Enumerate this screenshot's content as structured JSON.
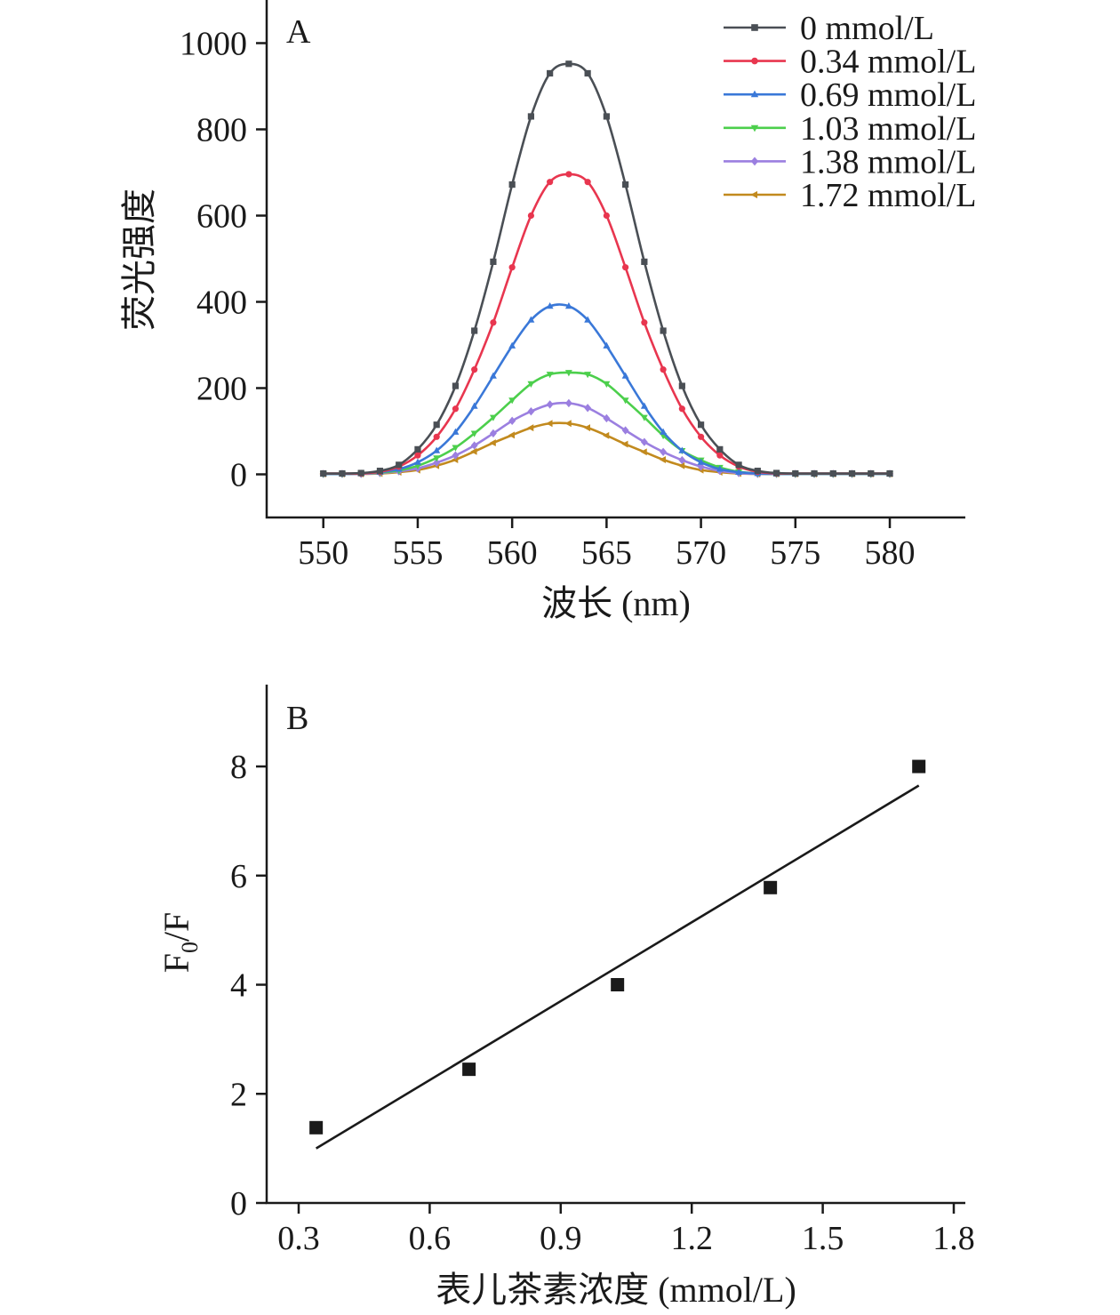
{
  "chart_data": [
    {
      "type": "line",
      "panel_label": "A",
      "xlabel": "波长 (nm)",
      "ylabel": "荧光强度",
      "xlim": [
        547,
        584
      ],
      "ylim": [
        -100,
        1100
      ],
      "xticks": [
        550,
        555,
        560,
        565,
        570,
        575,
        580
      ],
      "yticks": [
        0,
        200,
        400,
        600,
        800,
        1000
      ],
      "legend_position": "top-right",
      "x": [
        550,
        551,
        552,
        553,
        554,
        555,
        556,
        557,
        558,
        559,
        560,
        561,
        562,
        563,
        564,
        565,
        566,
        567,
        568,
        569,
        570,
        571,
        572,
        573,
        574,
        575,
        576,
        577,
        578,
        579,
        580
      ],
      "series": [
        {
          "name": "0 mmol/L",
          "color": "#4a4f55",
          "marker": "square",
          "values": [
            2,
            2,
            3,
            8,
            22,
            58,
            115,
            205,
            333,
            493,
            672,
            830,
            930,
            952,
            930,
            830,
            672,
            493,
            333,
            205,
            115,
            58,
            22,
            8,
            3,
            2,
            2,
            2,
            2,
            2,
            2
          ]
        },
        {
          "name": "0.34 mmol/L",
          "color": "#e8364f",
          "marker": "circle",
          "values": [
            2,
            2,
            2,
            6,
            18,
            44,
            87,
            152,
            243,
            352,
            480,
            600,
            678,
            696,
            678,
            600,
            480,
            352,
            243,
            152,
            87,
            44,
            18,
            6,
            2,
            2,
            2,
            2,
            2,
            2,
            2
          ]
        },
        {
          "name": "0.69 mmol/L",
          "color": "#3a78d8",
          "marker": "triangle-up",
          "values": [
            1,
            1,
            2,
            5,
            12,
            28,
            55,
            98,
            158,
            228,
            298,
            358,
            390,
            390,
            358,
            298,
            228,
            158,
            98,
            55,
            28,
            12,
            5,
            2,
            1,
            1,
            1,
            1,
            1,
            1,
            1
          ]
        },
        {
          "name": "1.03 mmol/L",
          "color": "#4ccf4c",
          "marker": "triangle-down",
          "values": [
            1,
            1,
            2,
            4,
            9,
            20,
            38,
            62,
            95,
            132,
            172,
            210,
            232,
            236,
            232,
            210,
            172,
            132,
            90,
            55,
            33,
            16,
            6,
            2,
            1,
            1,
            1,
            1,
            1,
            1,
            1
          ]
        },
        {
          "name": "1.38 mmol/L",
          "color": "#9b7fe0",
          "marker": "diamond",
          "values": [
            1,
            1,
            1,
            3,
            7,
            14,
            27,
            44,
            67,
            95,
            124,
            146,
            162,
            165,
            154,
            130,
            102,
            75,
            52,
            33,
            18,
            8,
            3,
            1,
            1,
            1,
            1,
            1,
            1,
            1,
            1
          ]
        },
        {
          "name": "1.72 mmol/L",
          "color": "#c28a1e",
          "marker": "triangle-left",
          "values": [
            1,
            1,
            1,
            2,
            5,
            10,
            20,
            34,
            53,
            73,
            91,
            108,
            118,
            118,
            108,
            90,
            70,
            52,
            34,
            20,
            10,
            5,
            2,
            1,
            1,
            1,
            1,
            1,
            1,
            1,
            1
          ]
        }
      ]
    },
    {
      "type": "scatter",
      "panel_label": "B",
      "xlabel": "表儿茶素浓度 (mmol/L)",
      "ylabel": "F",
      "ylabel_sub": "0",
      "ylabel_tail": "/F",
      "xlim": [
        0.3,
        1.8
      ],
      "ylim": [
        0,
        9.5
      ],
      "xticks": [
        "0.3",
        "0.6",
        "0.9",
        "1.2",
        "1.5",
        "1.8"
      ],
      "yticks": [
        0,
        2,
        4,
        6,
        8
      ],
      "color": "#1a1a1a",
      "marker": "square",
      "points": {
        "x": [
          0.34,
          0.69,
          1.03,
          1.38,
          1.72
        ],
        "y": [
          1.38,
          2.45,
          4.0,
          5.78,
          8.0
        ]
      },
      "fit_line": {
        "x": [
          0.34,
          1.72
        ],
        "y": [
          1.0,
          7.65
        ]
      }
    }
  ]
}
